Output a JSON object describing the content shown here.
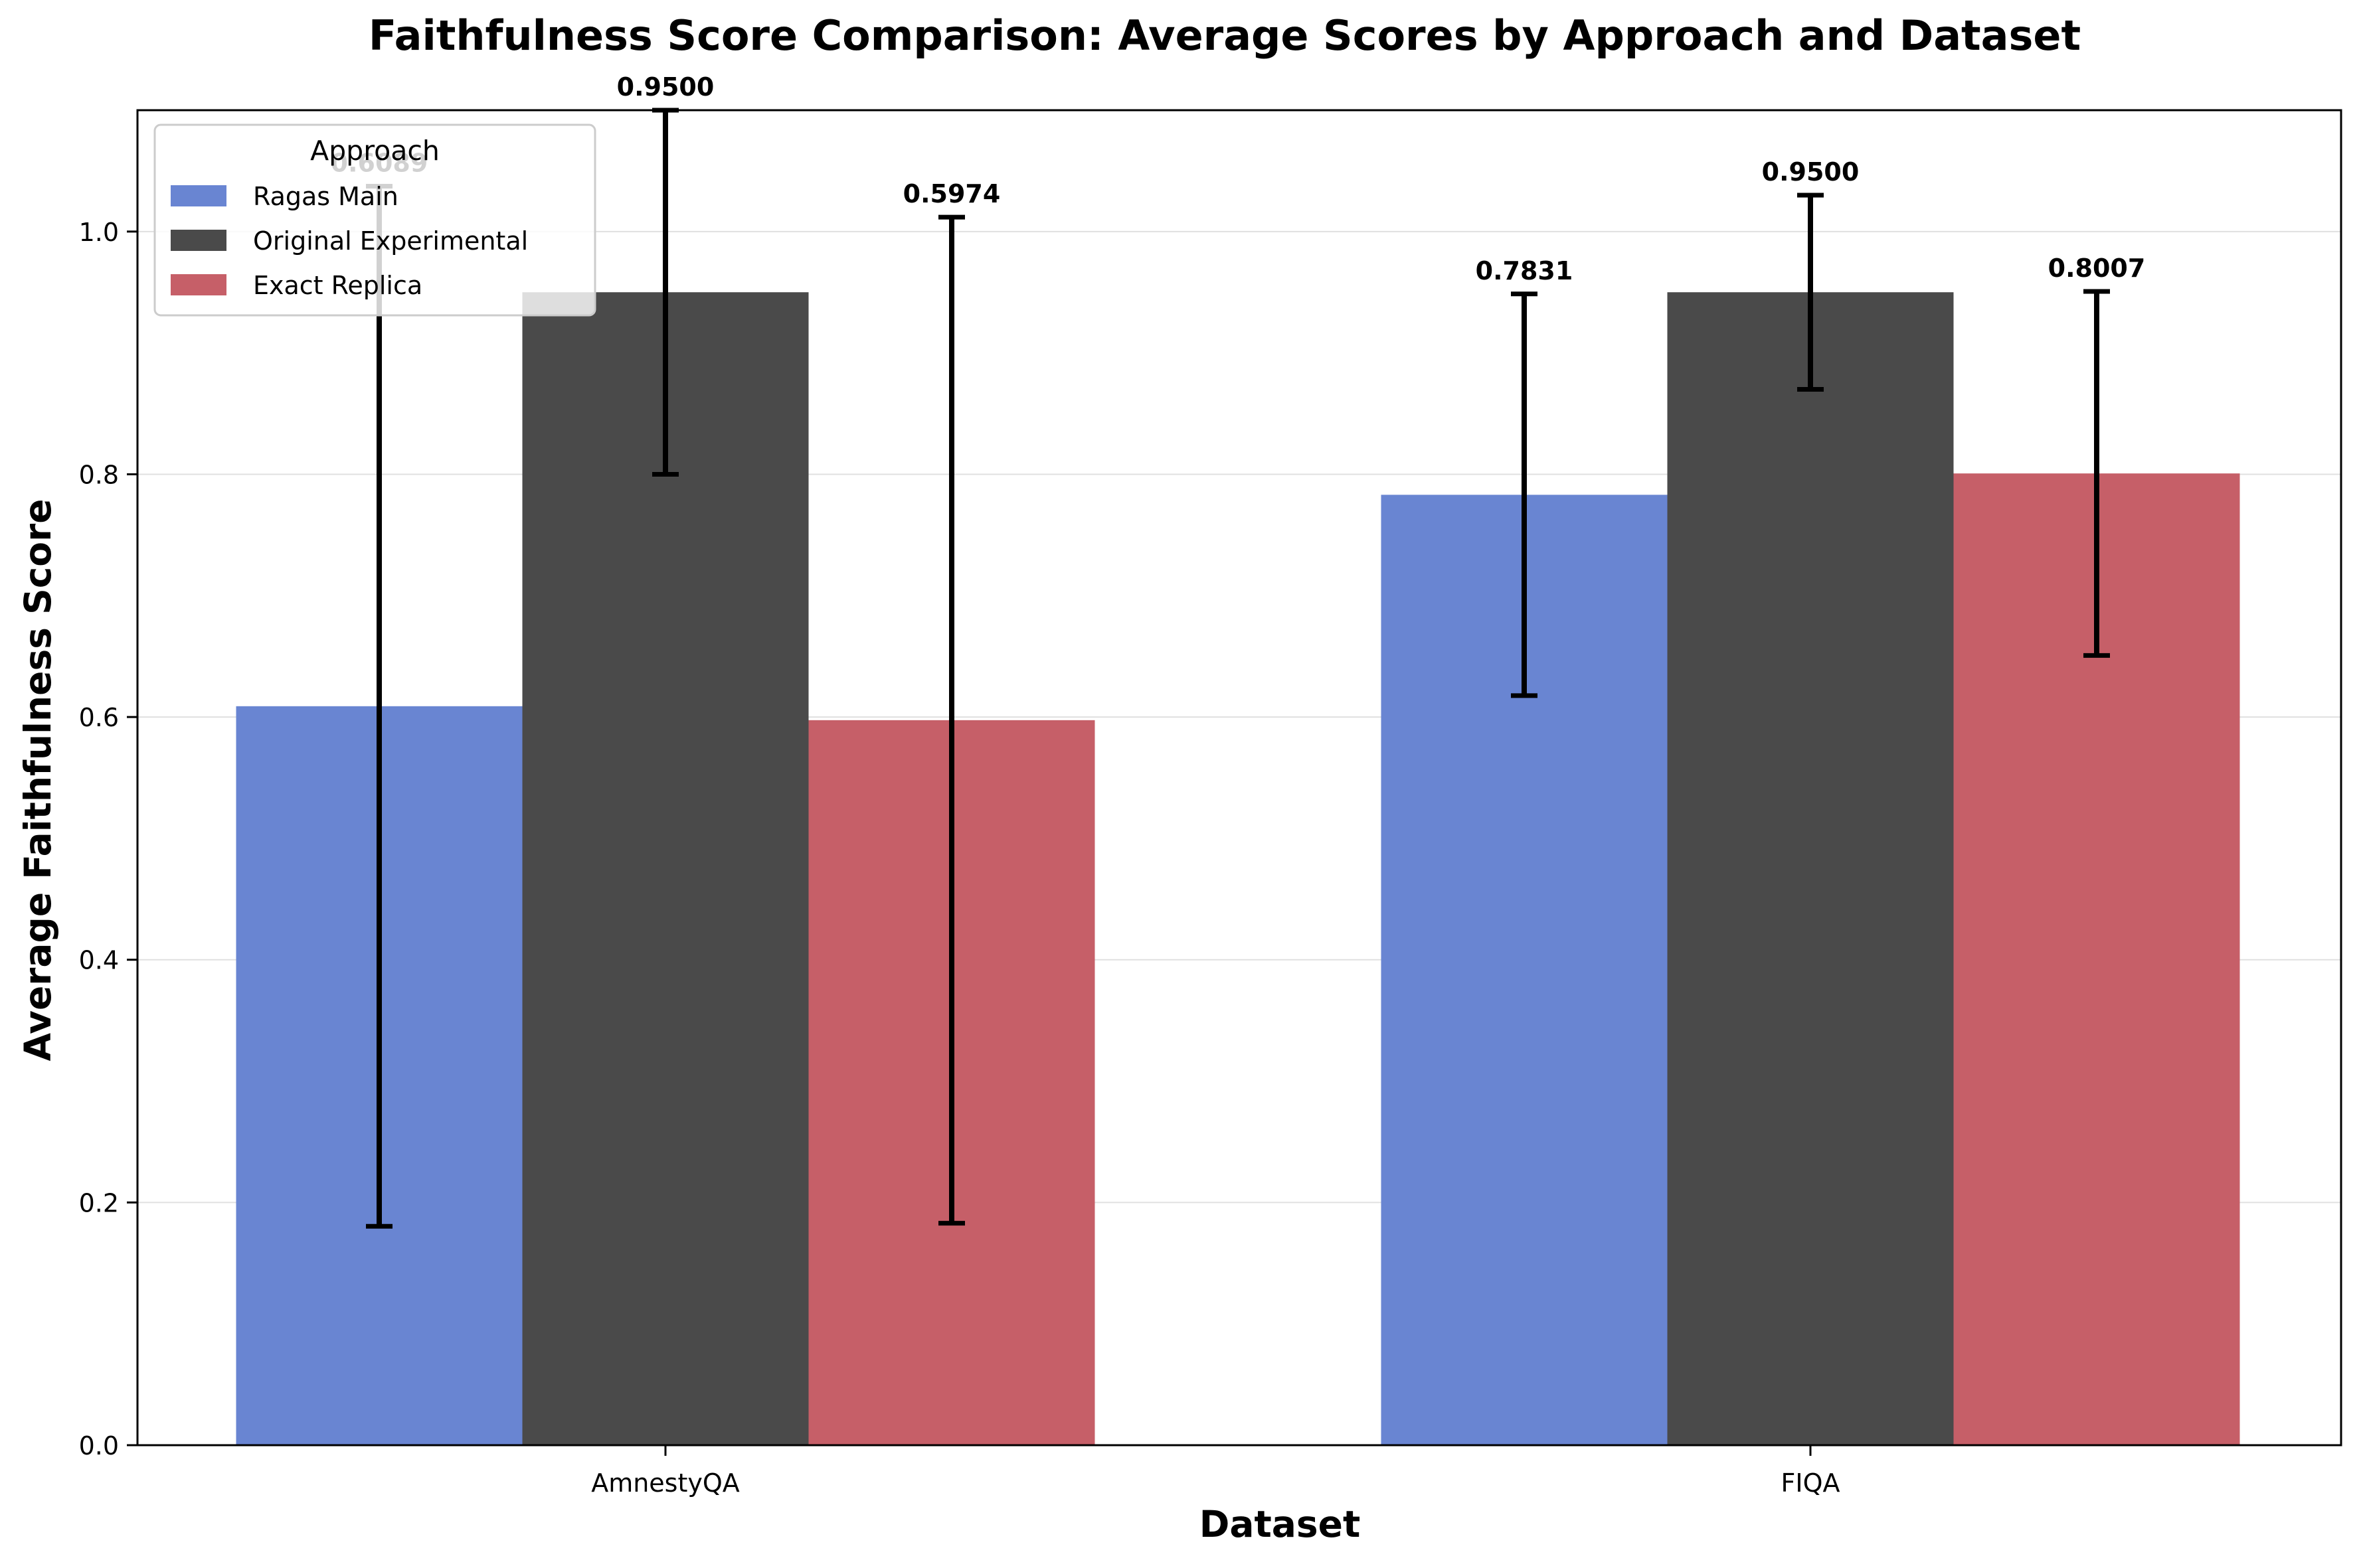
{
  "chart_data": {
    "type": "bar",
    "title": "Faithfulness Score Comparison: Average Scores by Approach and Dataset",
    "xlabel": "Dataset",
    "ylabel": "Average Faithfulness Score",
    "categories": [
      "AmnestyQA",
      "FIQA"
    ],
    "ylim": [
      0,
      1.1
    ],
    "yticks": [
      "0.0",
      "0.2",
      "0.4",
      "0.6",
      "0.8",
      "1.0"
    ],
    "ytick_values": [
      0,
      0.2,
      0.4,
      0.6,
      0.8,
      1.0
    ],
    "grid": "horizontal",
    "legend": {
      "title": "Approach",
      "position": "upper-left"
    },
    "series": [
      {
        "name": "Ragas Main",
        "color": "#6985d2",
        "values": [
          0.6089,
          0.7831
        ],
        "errors": [
          0.4285,
          0.1655
        ],
        "labels": [
          "0.6089",
          "0.7831"
        ]
      },
      {
        "name": "Original Experimental",
        "color": "#4a4a4a",
        "values": [
          0.95,
          0.95
        ],
        "errors": [
          0.15,
          0.08
        ],
        "labels": [
          "0.9500",
          "0.9500"
        ]
      },
      {
        "name": "Exact Replica",
        "color": "#c65f68",
        "values": [
          0.5974,
          0.8007
        ],
        "errors": [
          0.4145,
          0.15
        ],
        "labels": [
          "0.5974",
          "0.8007"
        ]
      }
    ]
  }
}
